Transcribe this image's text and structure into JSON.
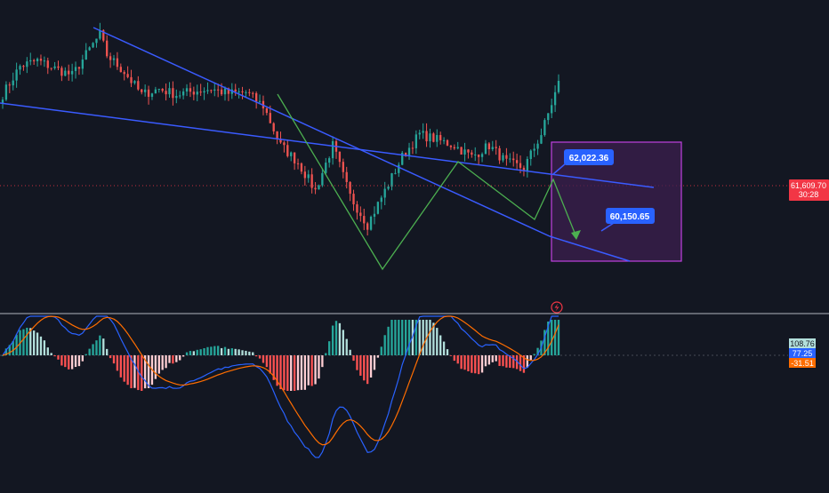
{
  "colors": {
    "background": "#131722",
    "bull": "#26a69a",
    "bear": "#ef5350",
    "trendline": "#3a5bff",
    "pattern": "#4caf50",
    "target_box_fill": "#3c1f4f",
    "target_box_stroke": "#c040e0",
    "label_bg": "#2962ff",
    "price_tag": "#f23645",
    "macd_line": "#2962ff",
    "signal_line": "#ff6d00",
    "hist_up_strong": "#26a69a",
    "hist_up_weak": "#b2dfdb",
    "hist_down_strong": "#ff5252",
    "hist_down_weak": "#ffcdd2",
    "separator": "#b2b5be"
  },
  "price_axis": {
    "current_price": "61,609.70",
    "countdown": "30:28"
  },
  "annotations": {
    "upper_target": "62,022.36",
    "lower_target": "60,150.65",
    "replay_icon": "lightning-icon"
  },
  "macd_axis": {
    "hist_value": "108.76",
    "macd_value": "77.25",
    "signal_value": "-31.51"
  },
  "chart_data": [
    {
      "type": "candlestick",
      "panel": "price",
      "bars": 161,
      "close_anchors": [
        [
          0,
          61850
        ],
        [
          5,
          62100
        ],
        [
          10,
          62150
        ],
        [
          15,
          62080
        ],
        [
          20,
          62020
        ],
        [
          25,
          62250
        ],
        [
          28,
          62380
        ],
        [
          30,
          62200
        ],
        [
          35,
          62050
        ],
        [
          40,
          61850
        ],
        [
          45,
          61900
        ],
        [
          50,
          61850
        ],
        [
          55,
          61880
        ],
        [
          60,
          61900
        ],
        [
          65,
          61860
        ],
        [
          70,
          61870
        ],
        [
          75,
          61750
        ],
        [
          80,
          61400
        ],
        [
          85,
          61250
        ],
        [
          90,
          61000
        ],
        [
          95,
          61400
        ],
        [
          100,
          60950
        ],
        [
          105,
          60700
        ],
        [
          110,
          61000
        ],
        [
          115,
          61300
        ],
        [
          120,
          61500
        ],
        [
          125,
          61450
        ],
        [
          130,
          61400
        ],
        [
          135,
          61300
        ],
        [
          140,
          61400
        ],
        [
          145,
          61250
        ],
        [
          150,
          61200
        ],
        [
          155,
          61500
        ],
        [
          160,
          61950
        ]
      ],
      "current_price": 61609.7,
      "patterns": [
        "descending channel",
        "W bottom",
        "falling wedge"
      ],
      "targets": [
        62022.36,
        60150.65
      ]
    },
    {
      "type": "macd",
      "panel": "indicator",
      "histogram": 108.76,
      "macd": 77.25,
      "signal": -31.51
    }
  ]
}
